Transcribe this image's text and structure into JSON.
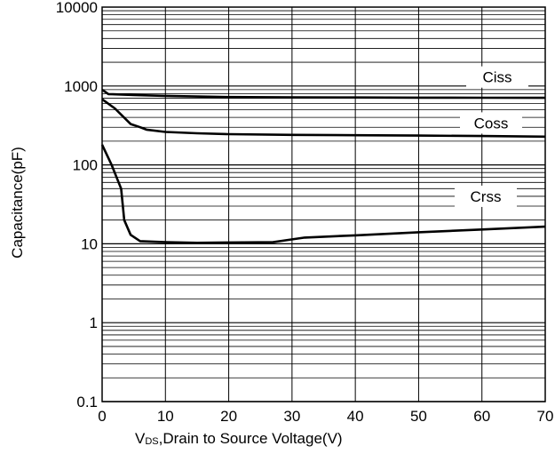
{
  "chart_data": {
    "type": "line",
    "y_scale": "log",
    "xlim": [
      0,
      70
    ],
    "ylim": [
      0.1,
      10000
    ],
    "x_ticks": [
      "0",
      "10",
      "20",
      "30",
      "40",
      "50",
      "60",
      "70"
    ],
    "y_ticks": [
      "0.1",
      "1",
      "10",
      "100",
      "1000",
      "10000"
    ],
    "xlabel_main": "V",
    "xlabel_sub": "DS",
    "xlabel_rest": ",Drain to Source Voltage(V)",
    "ylabel": "Capacitance(pF)",
    "grid": true,
    "series": [
      {
        "name": "Ciss",
        "color": "#000000",
        "points": [
          [
            0,
            900
          ],
          [
            1,
            790
          ],
          [
            5,
            770
          ],
          [
            10,
            750
          ],
          [
            20,
            725
          ],
          [
            30,
            718
          ],
          [
            40,
            715
          ],
          [
            50,
            712
          ],
          [
            60,
            710
          ],
          [
            70,
            708
          ]
        ]
      },
      {
        "name": "Coss",
        "color": "#000000",
        "points": [
          [
            0,
            680
          ],
          [
            2,
            520
          ],
          [
            4.5,
            330
          ],
          [
            6,
            300
          ],
          [
            7,
            280
          ],
          [
            10,
            262
          ],
          [
            15,
            252
          ],
          [
            20,
            245
          ],
          [
            30,
            240
          ],
          [
            40,
            238
          ],
          [
            50,
            235
          ],
          [
            60,
            232
          ],
          [
            70,
            228
          ]
        ]
      },
      {
        "name": "Crss",
        "color": "#000000",
        "points": [
          [
            0,
            180
          ],
          [
            1.5,
            100
          ],
          [
            3,
            50
          ],
          [
            3.5,
            20
          ],
          [
            4.5,
            13
          ],
          [
            6,
            10.8
          ],
          [
            10,
            10.5
          ],
          [
            15,
            10.3
          ],
          [
            20,
            10.4
          ],
          [
            27,
            10.5
          ],
          [
            32,
            12
          ],
          [
            40,
            12.8
          ],
          [
            50,
            14
          ],
          [
            60,
            15.2
          ],
          [
            70,
            16.5
          ]
        ]
      }
    ]
  }
}
